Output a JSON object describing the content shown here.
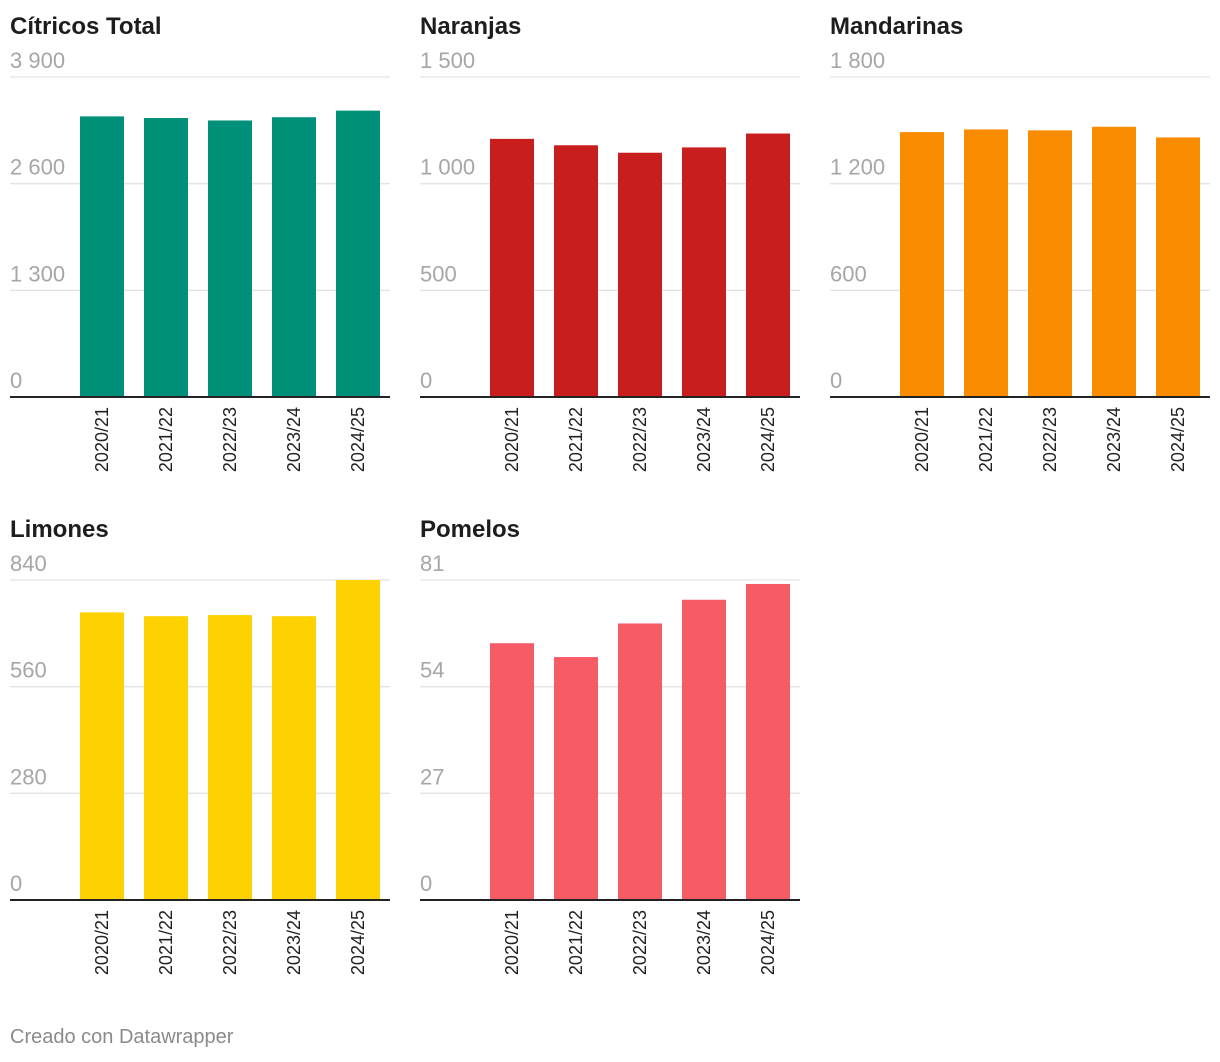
{
  "chart_data": [
    {
      "type": "bar",
      "title": "Cítricos Total",
      "color": "#00907a",
      "categories": [
        "2020/21",
        "2021/22",
        "2022/23",
        "2023/24",
        "2024/25"
      ],
      "values": [
        3420,
        3400,
        3370,
        3410,
        3490
      ],
      "ylim": [
        0,
        3900
      ],
      "yticks": [
        0,
        1300,
        2600,
        3900
      ],
      "ytick_labels": [
        "0",
        "1 300",
        "2 600",
        "3 900"
      ]
    },
    {
      "type": "bar",
      "title": "Naranjas",
      "color": "#c81e1e",
      "categories": [
        "2020/21",
        "2021/22",
        "2022/23",
        "2023/24",
        "2024/25"
      ],
      "values": [
        1210,
        1180,
        1145,
        1170,
        1235
      ],
      "ylim": [
        0,
        1500
      ],
      "yticks": [
        0,
        500,
        1000,
        1500
      ],
      "ytick_labels": [
        "0",
        "500",
        "1 000",
        "1 500"
      ]
    },
    {
      "type": "bar",
      "title": "Mandarinas",
      "color": "#f98c00",
      "categories": [
        "2020/21",
        "2021/22",
        "2022/23",
        "2023/24",
        "2024/25"
      ],
      "values": [
        1490,
        1505,
        1500,
        1520,
        1460
      ],
      "ylim": [
        0,
        1800
      ],
      "yticks": [
        0,
        600,
        1200,
        1800
      ],
      "ytick_labels": [
        "0",
        "600",
        "1 200",
        "1 800"
      ]
    },
    {
      "type": "bar",
      "title": "Limones",
      "color": "#fed200",
      "categories": [
        "2020/21",
        "2021/22",
        "2022/23",
        "2023/24",
        "2024/25"
      ],
      "values": [
        755,
        745,
        748,
        745,
        840
      ],
      "ylim": [
        0,
        840
      ],
      "yticks": [
        0,
        280,
        560,
        840
      ],
      "ytick_labels": [
        "0",
        "280",
        "560",
        "840"
      ]
    },
    {
      "type": "bar",
      "title": "Pomelos",
      "color": "#f65b66",
      "categories": [
        "2020/21",
        "2021/22",
        "2022/23",
        "2023/24",
        "2024/25"
      ],
      "values": [
        65,
        61.5,
        70,
        76,
        80
      ],
      "ylim": [
        0,
        81
      ],
      "yticks": [
        0,
        27,
        54,
        81
      ],
      "ytick_labels": [
        "0",
        "27",
        "54",
        "81"
      ]
    }
  ],
  "footer": {
    "credit": "Creado con Datawrapper"
  }
}
